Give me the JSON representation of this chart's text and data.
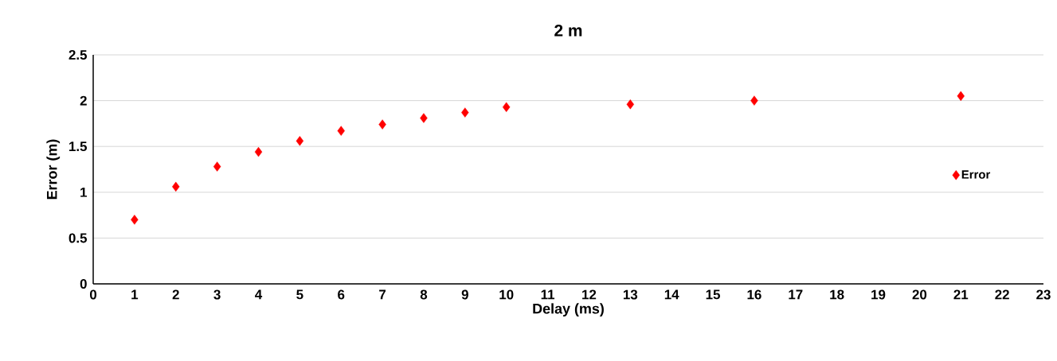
{
  "chart_data": {
    "type": "scatter",
    "title": "2 m",
    "xlabel": "Delay (ms)",
    "ylabel": "Error (m)",
    "x": [
      1,
      2,
      3,
      4,
      5,
      6,
      7,
      8,
      9,
      10,
      13,
      16,
      21
    ],
    "series": [
      {
        "name": "Error",
        "color": "#ff0000",
        "values": [
          0.7,
          1.06,
          1.28,
          1.44,
          1.56,
          1.67,
          1.74,
          1.81,
          1.87,
          1.93,
          1.96,
          2.0,
          2.05
        ]
      }
    ],
    "xlim": [
      0,
      23
    ],
    "xticks": [
      0,
      1,
      2,
      3,
      4,
      5,
      6,
      7,
      8,
      9,
      10,
      11,
      12,
      13,
      14,
      15,
      16,
      17,
      18,
      19,
      20,
      21,
      22,
      23
    ],
    "ylim": [
      0,
      2.5
    ],
    "yticks": [
      0,
      0.5,
      1,
      1.5,
      2,
      2.5
    ],
    "grid": "y",
    "legend": "right",
    "marker": "diamond"
  }
}
